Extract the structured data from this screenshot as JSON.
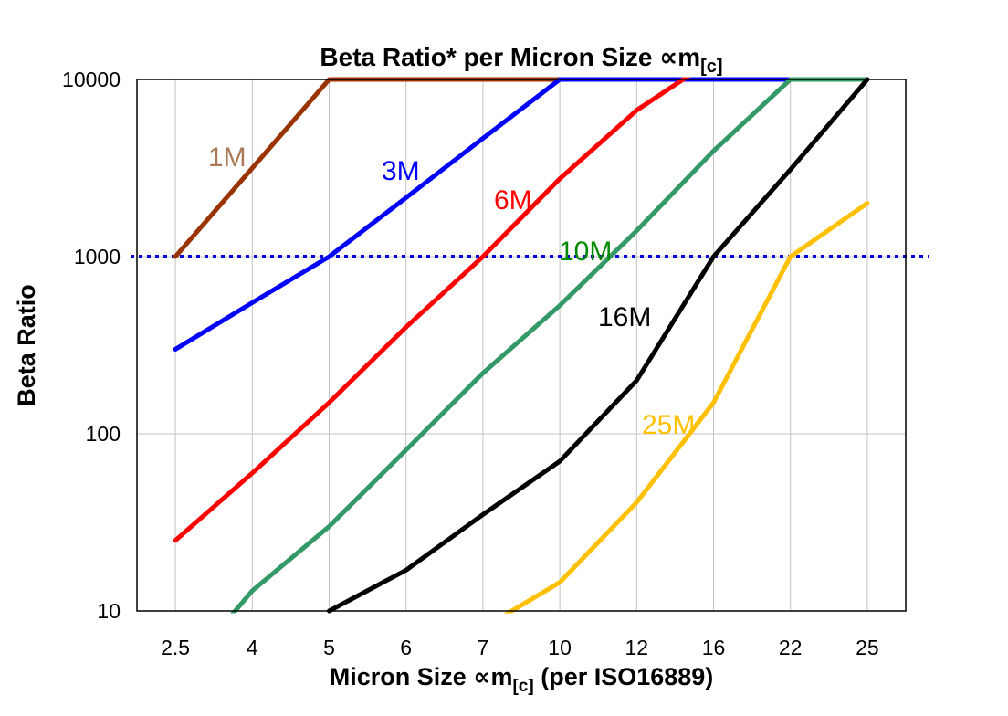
{
  "title": {
    "main": "Beta Ratio* per Micron Size ∝m",
    "sub": "[c]"
  },
  "y_axis": {
    "label": "Beta Ratio",
    "ticks": [
      10000,
      1000,
      100,
      10
    ]
  },
  "x_axis": {
    "label_pre": "Micron Size ∝m",
    "label_sub": "[c]",
    "label_post": " (per ISO16889)"
  },
  "chart_data": {
    "type": "line",
    "x_scale": "category",
    "y_scale": "log",
    "title": "Beta Ratio* per Micron Size ∝m[c]",
    "xlabel": "Micron Size ∝m[c] (per ISO16889)",
    "ylabel": "Beta Ratio",
    "categories": [
      2.5,
      4,
      5,
      6,
      7,
      10,
      12,
      16,
      22,
      25
    ],
    "ylim": [
      10,
      10000
    ],
    "y_gridlines": [
      100,
      1000
    ],
    "grid": "vertical-per-category",
    "legend": "inline-labels",
    "reference_line": {
      "y": 1000,
      "color": "#0000e0",
      "style": "dotted"
    },
    "series": [
      {
        "name": "1M",
        "color": "#993300",
        "label_color": "#a97957",
        "values": [
          1000,
          3160,
          10000,
          10000,
          10000,
          10000,
          null,
          null,
          null,
          null
        ]
      },
      {
        "name": "3M",
        "color": "#0000ff",
        "label_color": "#0000ff",
        "values": [
          300,
          550,
          1000,
          2150,
          4650,
          10000,
          10000,
          10000,
          10000,
          null
        ]
      },
      {
        "name": "6M",
        "color": "#ff0000",
        "label_color": "#ff0000",
        "values": [
          25,
          60,
          150,
          400,
          1000,
          2750,
          6700,
          13000,
          null,
          null
        ]
      },
      {
        "name": "10M",
        "color": "#339966",
        "label_color": "#008a00",
        "values": [
          4,
          13,
          30,
          81,
          220,
          530,
          1400,
          3950,
          10000,
          10000
        ]
      },
      {
        "name": "16M",
        "color": "#000000",
        "label_color": "#000000",
        "values": [
          null,
          null,
          10,
          17,
          35,
          70,
          200,
          1000,
          3100,
          10000
        ]
      },
      {
        "name": "25M",
        "color": "#ffc000",
        "label_color": "#ffc000",
        "values": [
          null,
          null,
          null,
          null,
          8,
          14.5,
          41,
          150,
          1000,
          2000
        ]
      }
    ]
  }
}
